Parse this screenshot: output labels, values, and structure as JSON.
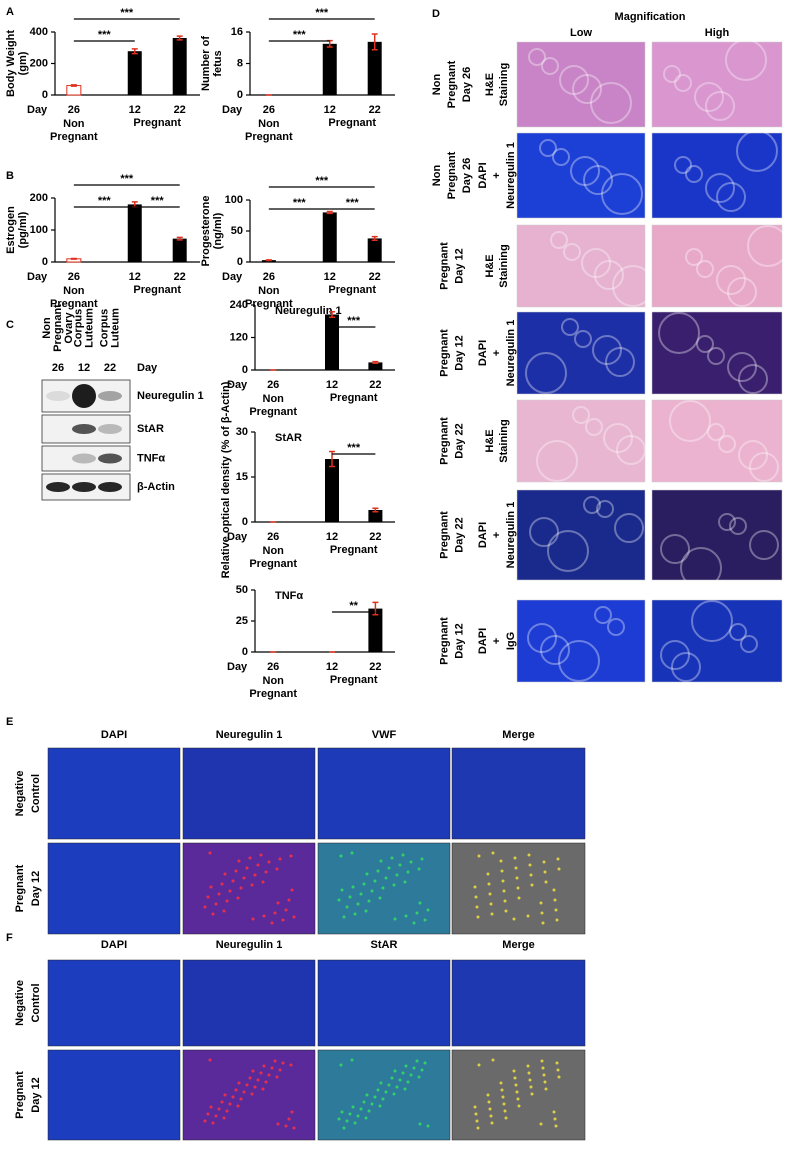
{
  "panel_letters": [
    "A",
    "B",
    "C",
    "D",
    "E",
    "F"
  ],
  "chart_data": [
    {
      "type": "bar",
      "ylabel": [
        "Body Weight",
        "(gm)"
      ],
      "x_label": "Day",
      "categories": [
        "26",
        "12",
        "22"
      ],
      "groups": [
        [
          "Non",
          "Pregnant"
        ],
        [
          "Pregnant"
        ]
      ],
      "values": [
        60,
        278,
        362
      ],
      "errors": [
        4,
        15,
        12
      ],
      "colors": [
        "#ffffff",
        "#000000",
        "#000000"
      ],
      "error_color": "#e0301e",
      "ylim": [
        0,
        400
      ],
      "yticks": [
        0,
        200,
        400
      ],
      "annotations": [
        "***",
        "***"
      ]
    },
    {
      "type": "bar",
      "ylabel": [
        "Number of",
        "fetus"
      ],
      "x_label": "Day",
      "categories": [
        "26",
        "12",
        "22"
      ],
      "groups": [
        [
          "Non",
          "Pregnant"
        ],
        [
          "Pregnant"
        ]
      ],
      "values": [
        0,
        13,
        13.5
      ],
      "errors": [
        0,
        0.8,
        2
      ],
      "colors": [
        "#000000",
        "#000000",
        "#000000"
      ],
      "error_color": "#e0301e",
      "ylim": [
        0,
        16
      ],
      "yticks": [
        0,
        8,
        16
      ],
      "annotations": [
        "***",
        "***"
      ]
    },
    {
      "type": "bar",
      "ylabel": [
        "Estrogen",
        "(pg/ml)"
      ],
      "x_label": "Day",
      "categories": [
        "26",
        "12",
        "22"
      ],
      "groups": [
        [
          "Non",
          "Pregnant"
        ],
        [
          "Pregnant"
        ]
      ],
      "values": [
        10,
        180,
        73
      ],
      "errors": [
        1,
        8,
        4
      ],
      "colors": [
        "#ffffff",
        "#000000",
        "#000000"
      ],
      "error_color": "#e0301e",
      "ylim": [
        0,
        200
      ],
      "yticks": [
        0,
        100,
        200
      ],
      "annotations": [
        "***",
        "***",
        "***"
      ]
    },
    {
      "type": "bar",
      "ylabel": [
        "Progesterone",
        "(ng/ml)"
      ],
      "x_label": "Day",
      "categories": [
        "26",
        "12",
        "22"
      ],
      "groups": [
        [
          "Non",
          "Pregnant"
        ],
        [
          "Pregnant"
        ]
      ],
      "values": [
        3,
        80,
        38
      ],
      "errors": [
        0.5,
        1.5,
        3
      ],
      "colors": [
        "#000000",
        "#000000",
        "#000000"
      ],
      "error_color": "#e0301e",
      "ylim": [
        0,
        100
      ],
      "yticks": [
        0,
        50,
        100
      ],
      "annotations": [
        "***",
        "***",
        "***"
      ]
    },
    {
      "type": "bar",
      "title": "Neuregulin 1",
      "x_label": "Day",
      "categories": [
        "26",
        "12",
        "22"
      ],
      "groups": [
        [
          "Non",
          "Pregnant"
        ],
        [
          "Pregnant"
        ]
      ],
      "values": [
        0,
        205,
        28
      ],
      "errors": [
        0,
        10,
        3
      ],
      "colors": [
        "#000000",
        "#000000",
        "#000000"
      ],
      "error_color": "#e0301e",
      "ylim": [
        0,
        240
      ],
      "yticks": [
        0,
        120,
        240
      ],
      "annotations": [
        "***"
      ]
    },
    {
      "type": "bar",
      "title": "StAR",
      "x_label": "Day",
      "categories": [
        "26",
        "12",
        "22"
      ],
      "groups": [
        [
          "Non",
          "Pregnant"
        ],
        [
          "Pregnant"
        ]
      ],
      "values": [
        0,
        21,
        4
      ],
      "errors": [
        0,
        2.5,
        0.6
      ],
      "colors": [
        "#000000",
        "#000000",
        "#000000"
      ],
      "error_color": "#e0301e",
      "ylim": [
        0,
        30
      ],
      "yticks": [
        0,
        15,
        30
      ],
      "annotations": [
        "***"
      ]
    },
    {
      "type": "bar",
      "title": "TNFα",
      "x_label": "Day",
      "categories": [
        "26",
        "12",
        "22"
      ],
      "groups": [
        [
          "Non",
          "Pregnant"
        ],
        [
          "Pregnant"
        ]
      ],
      "values": [
        0,
        0,
        35
      ],
      "errors": [
        0,
        0,
        5
      ],
      "colors": [
        "#000000",
        "#000000",
        "#000000"
      ],
      "error_color": "#e0301e",
      "ylim": [
        0,
        50
      ],
      "yticks": [
        0,
        25,
        50
      ],
      "annotations": [
        "**"
      ]
    }
  ],
  "panel_c": {
    "ylabel": "Relative optical density (% of β-Actin)"
  },
  "blot": {
    "headers": [
      [
        "Non",
        "Pregnant",
        "Ovary"
      ],
      [
        "Corpus",
        "Luteum"
      ],
      [
        "Corpus",
        "Luteum"
      ]
    ],
    "days": [
      "26",
      "12",
      "22"
    ],
    "day_label": "Day",
    "bands": [
      "Neuregulin 1",
      "StAR",
      "TNFα",
      "β-Actin"
    ]
  },
  "histology": {
    "title": "Magnification",
    "columns": [
      "Low",
      "High"
    ],
    "rows": [
      {
        "label": [
          "Non",
          "Pregnant",
          "Day 26"
        ],
        "stain": [
          {
            "text": "H&E",
            "color": "#000000"
          },
          {
            "text": "Staining",
            "color": "#000000"
          }
        ],
        "colors": [
          "#c884c6",
          "#d996cf"
        ]
      },
      {
        "label": [
          "Non",
          "Pregnant",
          "Day 26"
        ],
        "stain": [
          {
            "text": "DAPI",
            "color": "#2233cc"
          },
          {
            "text": "+",
            "color": "#000000"
          },
          {
            "text": "Neuregulin 1",
            "color": "#d6258f"
          }
        ],
        "colors": [
          "#1c3fd6",
          "#1a36c8"
        ]
      },
      {
        "label": [
          "Pregnant",
          "Day 12"
        ],
        "stain": [
          {
            "text": "H&E",
            "color": "#000000"
          },
          {
            "text": "Staining",
            "color": "#000000"
          }
        ],
        "colors": [
          "#e6b2cf",
          "#e8a9c9"
        ]
      },
      {
        "label": [
          "Pregnant",
          "Day 12"
        ],
        "stain": [
          {
            "text": "DAPI",
            "color": "#2233cc"
          },
          {
            "text": "+",
            "color": "#000000"
          },
          {
            "text": "Neuregulin 1",
            "color": "#d6258f"
          }
        ],
        "colors": [
          "#1d2fa6",
          "#3a1f6e"
        ]
      },
      {
        "label": [
          "Pregnant",
          "Day 22"
        ],
        "stain": [
          {
            "text": "H&E",
            "color": "#000000"
          },
          {
            "text": "Staining",
            "color": "#000000"
          }
        ],
        "colors": [
          "#e9b6d2",
          "#ebb3cf"
        ]
      },
      {
        "label": [
          "Pregnant",
          "Day 22"
        ],
        "stain": [
          {
            "text": "DAPI",
            "color": "#2233cc"
          },
          {
            "text": "+",
            "color": "#000000"
          },
          {
            "text": "Neuregulin 1",
            "color": "#d6258f"
          }
        ],
        "colors": [
          "#1a2a8c",
          "#2a1d60"
        ]
      },
      {
        "label": [
          "Pregnant",
          "Day 12"
        ],
        "stain": [
          {
            "text": "DAPI",
            "color": "#2233cc"
          },
          {
            "text": "+",
            "color": "#000000"
          },
          {
            "text": "IgG",
            "color": "#000000"
          }
        ],
        "colors": [
          "#1c3cd4",
          "#1733b8"
        ]
      }
    ]
  },
  "if_panels": [
    {
      "columns": [
        {
          "text": "DAPI",
          "color": "#2233cc"
        },
        {
          "text": "Neuregulin 1",
          "color": "#e0207a"
        },
        {
          "text": "VWF",
          "color": "#1db07a"
        },
        {
          "text": "Merge",
          "color": "#000000"
        }
      ],
      "rows": [
        [
          "Negative",
          "Control"
        ],
        [
          "Pregnant",
          "Day 12"
        ]
      ]
    },
    {
      "columns": [
        {
          "text": "DAPI",
          "color": "#2233cc"
        },
        {
          "text": "Neuregulin 1",
          "color": "#e0207a"
        },
        {
          "text": "StAR",
          "color": "#20b8a0"
        },
        {
          "text": "Merge",
          "color": "#000000"
        }
      ],
      "rows": [
        [
          "Negative",
          "Control"
        ],
        [
          "Pregnant",
          "Day 12"
        ]
      ]
    }
  ]
}
